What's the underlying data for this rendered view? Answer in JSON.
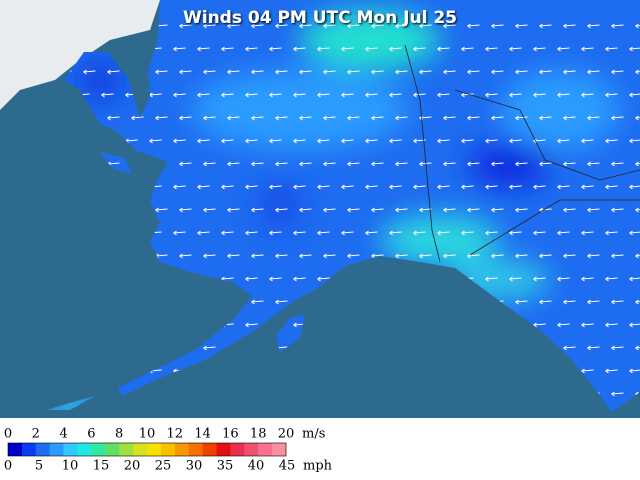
{
  "title": "Winds 04 PM UTC Mon Jul 25",
  "legend": {
    "ms": {
      "labels": [
        "0",
        "2",
        "4",
        "6",
        "8",
        "10",
        "12",
        "14",
        "16",
        "18",
        "20"
      ],
      "unit": "m/s"
    },
    "mph": {
      "labels": [
        "0",
        "5",
        "10",
        "15",
        "20",
        "25",
        "30",
        "35",
        "40",
        "45"
      ],
      "unit": "mph"
    }
  }
}
